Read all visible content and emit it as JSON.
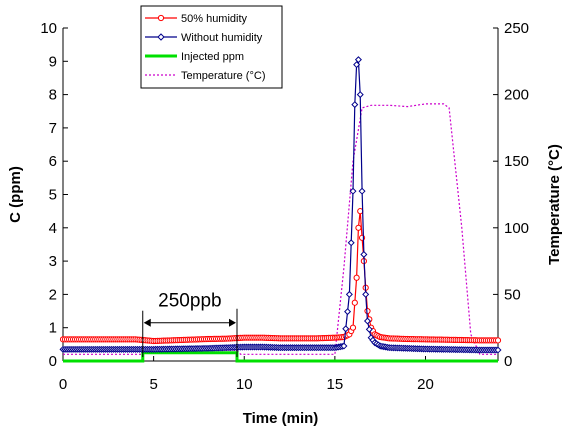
{
  "chart_data": {
    "type": "line",
    "xlabel": "Time (min)",
    "ylabel": "C  (ppm)",
    "y2label": "Temperature (°C)",
    "xlim": [
      0,
      24
    ],
    "ylim": [
      0,
      10
    ],
    "y2lim": [
      0,
      250
    ],
    "x_ticks": [
      0,
      5,
      10,
      15,
      20
    ],
    "y_ticks": [
      0,
      1,
      2,
      3,
      4,
      5,
      6,
      7,
      8,
      9,
      10
    ],
    "y2_ticks": [
      0,
      50,
      100,
      150,
      200,
      250
    ],
    "grid": false,
    "legend_position": "top-center",
    "series": [
      {
        "name": "50% humidity",
        "color": "#ff0000",
        "marker": "circle",
        "axis": "left",
        "x": [
          0,
          1,
          2,
          3,
          4,
          5,
          6,
          7,
          8,
          9,
          10,
          11,
          12,
          13,
          14,
          15,
          15.5,
          15.8,
          16.0,
          16.2,
          16.3,
          16.4,
          16.5,
          16.6,
          16.7,
          16.8,
          17.0,
          17.2,
          17.5,
          18,
          19,
          20,
          21,
          22,
          23,
          24
        ],
        "values": [
          0.65,
          0.65,
          0.65,
          0.65,
          0.65,
          0.6,
          0.62,
          0.64,
          0.66,
          0.67,
          0.7,
          0.7,
          0.68,
          0.68,
          0.68,
          0.7,
          0.72,
          0.8,
          1.0,
          2.5,
          4.0,
          4.5,
          3.7,
          3.0,
          2.2,
          1.5,
          1.0,
          0.8,
          0.72,
          0.68,
          0.66,
          0.65,
          0.64,
          0.63,
          0.62,
          0.62
        ]
      },
      {
        "name": "Without humidity",
        "color": "#00008b",
        "marker": "diamond",
        "axis": "left",
        "x": [
          0,
          1,
          2,
          3,
          4,
          5,
          6,
          7,
          8,
          9,
          10,
          11,
          12,
          13,
          14,
          15,
          15.5,
          15.8,
          16.0,
          16.1,
          16.2,
          16.3,
          16.4,
          16.5,
          16.6,
          16.7,
          16.8,
          17.0,
          17.2,
          17.5,
          18,
          19,
          20,
          21,
          22,
          23,
          24
        ],
        "values": [
          0.35,
          0.35,
          0.35,
          0.35,
          0.35,
          0.35,
          0.36,
          0.37,
          0.38,
          0.4,
          0.42,
          0.42,
          0.4,
          0.4,
          0.4,
          0.4,
          0.45,
          2.0,
          5.1,
          7.7,
          8.9,
          9.05,
          8.0,
          5.1,
          3.2,
          2.0,
          1.2,
          0.7,
          0.55,
          0.45,
          0.4,
          0.38,
          0.36,
          0.35,
          0.34,
          0.33,
          0.33
        ]
      },
      {
        "name": "Injected ppm",
        "color": "#00e000",
        "marker": "none",
        "axis": "left",
        "x": [
          0,
          4.4,
          4.4,
          9.6,
          9.6,
          24
        ],
        "values": [
          0,
          0,
          0.25,
          0.25,
          0,
          0
        ]
      },
      {
        "name": "Temperature (°C)",
        "color": "#cc00cc",
        "marker": "none",
        "dashed": true,
        "axis": "right",
        "x": [
          0,
          4.4,
          4.6,
          9.6,
          9.8,
          15.0,
          15.5,
          16.0,
          16.5,
          17.0,
          18.0,
          19.0,
          20.0,
          21.0,
          21.3,
          22.0,
          22.5,
          23.0,
          24.0
        ],
        "values": [
          5,
          5,
          8,
          8,
          5,
          5,
          70,
          150,
          190,
          192,
          192,
          191,
          193,
          193,
          190,
          100,
          20,
          5,
          5
        ]
      }
    ],
    "annotations": [
      {
        "text": "250ppb",
        "x_start": 4.4,
        "x_end": 9.6,
        "y": 1.15
      }
    ]
  }
}
